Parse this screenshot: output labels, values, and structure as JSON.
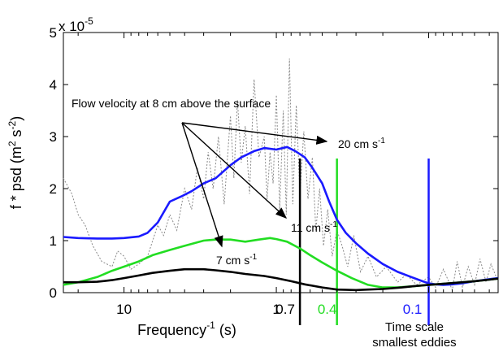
{
  "chart_data": {
    "type": "line",
    "x_scale": "log, reversed (period)",
    "xlim": [
      25,
      0.035
    ],
    "ylim": [
      0,
      5
    ],
    "y_multiplier": "x 10",
    "y_multiplier_exp": "-5",
    "xlabel": "Frequency",
    "xlabel_sup": "-1",
    "xlabel_unit": " (s)",
    "ylabel": "f * psd (m",
    "ylabel_sup1": "2",
    "ylabel_mid": " s",
    "ylabel_sup2": "-2",
    "ylabel_end": ")",
    "x_tick_labels": [
      {
        "value": 10,
        "label": "10",
        "color": "#000000"
      },
      {
        "value": 1,
        "label": "1",
        "color": "#000000"
      },
      {
        "value": 0.7,
        "label": "0.7",
        "color": "#000000"
      },
      {
        "value": 0.4,
        "label": "0.4",
        "color": "#22dd22"
      },
      {
        "value": 0.1,
        "label": "0.1",
        "color": "#1a1aff"
      }
    ],
    "y_ticks": [
      0,
      1,
      2,
      3,
      4,
      5
    ],
    "y_tick_labels": [
      "0",
      "1",
      "2",
      "3",
      "4",
      "5"
    ],
    "series": [
      {
        "color": "#1a1aff",
        "x": [
          25,
          20,
          15,
          12,
          10,
          8,
          7,
          6,
          5,
          4.2,
          3.6,
          3,
          2.5,
          2,
          1.7,
          1.4,
          1.2,
          1,
          0.85,
          0.75,
          0.65,
          0.58,
          0.5,
          0.45,
          0.4,
          0.35,
          0.3,
          0.25,
          0.2,
          0.16,
          0.13,
          0.11,
          0.1,
          0.09,
          0.08,
          0.07,
          0.06,
          0.05,
          0.04,
          0.035
        ],
        "y": [
          1.07,
          1.05,
          1.04,
          1.04,
          1.05,
          1.08,
          1.15,
          1.35,
          1.75,
          1.85,
          1.95,
          2.1,
          2.2,
          2.45,
          2.6,
          2.72,
          2.78,
          2.75,
          2.8,
          2.72,
          2.6,
          2.4,
          2.1,
          1.75,
          1.4,
          1.15,
          0.95,
          0.75,
          0.55,
          0.4,
          0.3,
          0.22,
          0.18,
          0.16,
          0.15,
          0.16,
          0.18,
          0.22,
          0.26,
          0.28
        ]
      },
      {
        "color": "#22dd22",
        "x": [
          25,
          20,
          15,
          12,
          10,
          8,
          6.5,
          5,
          4,
          3,
          2.5,
          2,
          1.6,
          1.3,
          1.1,
          1,
          0.85,
          0.7,
          0.6,
          0.5,
          0.4,
          0.32,
          0.25,
          0.2,
          0.16,
          0.13,
          0.1,
          0.08,
          0.06,
          0.05,
          0.04,
          0.035
        ],
        "y": [
          0.15,
          0.2,
          0.3,
          0.42,
          0.5,
          0.6,
          0.72,
          0.82,
          0.9,
          1.0,
          1.02,
          1.02,
          0.98,
          1.02,
          1.05,
          1.03,
          0.98,
          0.85,
          0.72,
          0.58,
          0.42,
          0.28,
          0.15,
          0.1,
          0.1,
          0.12,
          0.15,
          0.17,
          0.2,
          0.22,
          0.25,
          0.27
        ]
      },
      {
        "color": "#000000",
        "x": [
          25,
          20,
          15,
          12,
          10,
          8,
          6.5,
          5,
          4,
          3,
          2.5,
          2,
          1.6,
          1.2,
          1,
          0.8,
          0.65,
          0.5,
          0.4,
          0.3,
          0.25,
          0.2,
          0.15,
          0.12,
          0.1,
          0.08,
          0.06,
          0.05,
          0.04,
          0.035
        ],
        "y": [
          0.2,
          0.2,
          0.21,
          0.24,
          0.28,
          0.33,
          0.38,
          0.42,
          0.45,
          0.45,
          0.43,
          0.4,
          0.36,
          0.32,
          0.28,
          0.22,
          0.16,
          0.1,
          0.06,
          0.05,
          0.06,
          0.07,
          0.1,
          0.13,
          0.15,
          0.17,
          0.2,
          0.22,
          0.25,
          0.27
        ]
      }
    ],
    "raw_spectrum": {
      "color": "#888888",
      "x": [
        25,
        22,
        20,
        18,
        16,
        14,
        12,
        11,
        10,
        9,
        8,
        7,
        6,
        5.5,
        5,
        4.5,
        4,
        3.6,
        3.3,
        3,
        2.8,
        2.6,
        2.4,
        2.2,
        2.0,
        1.9,
        1.8,
        1.7,
        1.6,
        1.5,
        1.4,
        1.3,
        1.2,
        1.15,
        1.1,
        1.05,
        1.0,
        0.95,
        0.9,
        0.86,
        0.82,
        0.78,
        0.74,
        0.7,
        0.66,
        0.62,
        0.58,
        0.55,
        0.52,
        0.49,
        0.46,
        0.43,
        0.4,
        0.37,
        0.34,
        0.31,
        0.28,
        0.25,
        0.22,
        0.19,
        0.16,
        0.14,
        0.12,
        0.1,
        0.09,
        0.08,
        0.07,
        0.065,
        0.06,
        0.055,
        0.05,
        0.046,
        0.042,
        0.039,
        0.036
      ],
      "y": [
        2.2,
        1.9,
        1.5,
        1.3,
        0.9,
        0.6,
        0.5,
        0.8,
        0.7,
        0.45,
        0.55,
        0.7,
        1.3,
        1.1,
        1.5,
        1.2,
        2.0,
        1.6,
        2.4,
        1.8,
        2.7,
        2.0,
        3.0,
        1.7,
        3.4,
        2.2,
        3.7,
        2.5,
        3.2,
        1.9,
        4.1,
        2.6,
        3.0,
        1.8,
        2.7,
        2.1,
        3.8,
        1.6,
        3.5,
        1.5,
        4.5,
        1.7,
        3.6,
        1.9,
        3.1,
        1.8,
        2.6,
        1.2,
        2.0,
        0.9,
        1.6,
        0.7,
        1.2,
        0.9,
        0.5,
        1.1,
        0.4,
        0.7,
        0.3,
        0.5,
        0.2,
        0.35,
        0.15,
        0.3,
        0.1,
        0.45,
        0.05,
        0.6,
        0.1,
        0.5,
        0.15,
        0.65,
        0.2,
        0.55,
        0.3
      ]
    },
    "vertical_lines": [
      {
        "value": 0.7,
        "color": "#000000"
      },
      {
        "value": 0.4,
        "color": "#22dd22"
      },
      {
        "value": 0.1,
        "color": "#1a1aff"
      }
    ],
    "annotations": {
      "flow_label": "Flow velocity at 8 cm above the surface",
      "label_20": "20 cm s",
      "label_11": "11 cm s",
      "label_7": "7 cm s",
      "unit_sup": "-1",
      "time_scale_line1": "Time scale",
      "time_scale_line2": "smallest eddies"
    }
  }
}
